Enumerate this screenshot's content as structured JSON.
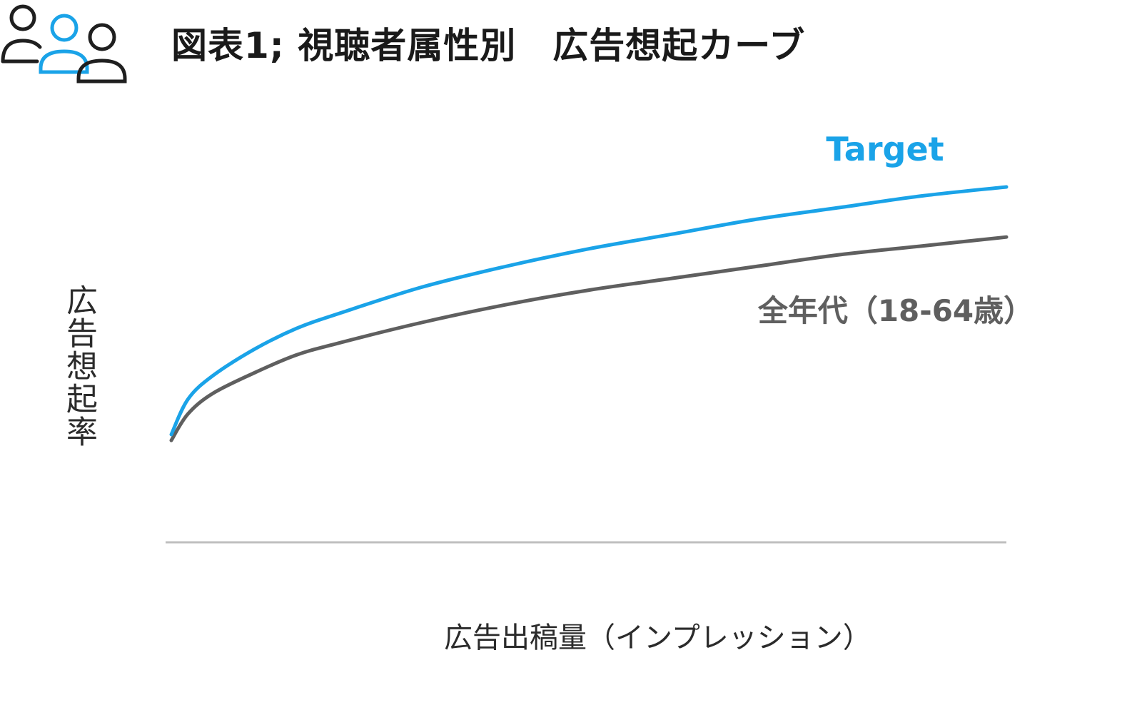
{
  "header": {
    "title": "図表1; 視聴者属性別　広告想起カーブ",
    "icon": "people-group-icon"
  },
  "colors": {
    "target": "#1aa3e8",
    "all_ages": "#5f5f5f",
    "axis": "#bfbfbf",
    "icon_dark": "#1f1f1f",
    "icon_accent": "#1aa3e8"
  },
  "chart_data": {
    "type": "line",
    "title": "図表1; 視聴者属性別　広告想起カーブ",
    "xlabel": "広告出稿量（インプレッション）",
    "ylabel": "広告想起率",
    "xlim": [
      0,
      1
    ],
    "ylim": [
      0,
      1
    ],
    "grid": false,
    "axis_ticks": false,
    "x": [
      0,
      0.02,
      0.05,
      0.1,
      0.15,
      0.2,
      0.3,
      0.4,
      0.5,
      0.6,
      0.7,
      0.8,
      0.9,
      1.0
    ],
    "series": [
      {
        "name": "Target",
        "color": "#1aa3e8",
        "values": [
          0.16,
          0.28,
          0.36,
          0.45,
          0.52,
          0.57,
          0.66,
          0.73,
          0.79,
          0.84,
          0.89,
          0.93,
          0.97,
          1.0
        ]
      },
      {
        "name": "全年代（18-64歳）",
        "color": "#5f5f5f",
        "values": [
          0.14,
          0.23,
          0.3,
          0.37,
          0.43,
          0.47,
          0.54,
          0.6,
          0.65,
          0.69,
          0.73,
          0.77,
          0.8,
          0.83
        ]
      }
    ]
  }
}
